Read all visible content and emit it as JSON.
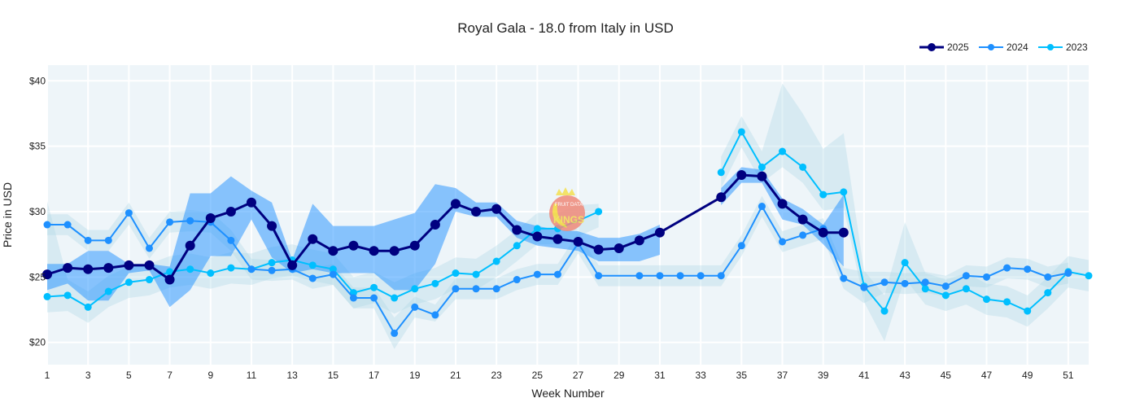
{
  "chart_data": {
    "type": "line",
    "title": "Royal Gala - 18.0 from Italy in USD",
    "xlabel": "Week Number",
    "ylabel": "Price in USD",
    "ylim": [
      18.3,
      41.2
    ],
    "xlim": [
      1,
      52
    ],
    "yticks": [
      20,
      25,
      30,
      35,
      40
    ],
    "ytick_labels": [
      "$20",
      "$25",
      "$30",
      "$35",
      "$40"
    ],
    "xticks": [
      1,
      3,
      5,
      7,
      9,
      11,
      13,
      15,
      17,
      19,
      21,
      23,
      25,
      27,
      29,
      31,
      33,
      35,
      37,
      39,
      41,
      43,
      45,
      47,
      49,
      51
    ],
    "grid": true,
    "legend_position": "top-right",
    "background": "#EEF5F9",
    "weeks": [
      1,
      2,
      3,
      4,
      5,
      6,
      7,
      8,
      9,
      10,
      11,
      12,
      13,
      14,
      15,
      16,
      17,
      18,
      19,
      20,
      21,
      22,
      23,
      24,
      25,
      26,
      27,
      28,
      29,
      30,
      31,
      32,
      33,
      34,
      35,
      36,
      37,
      38,
      39,
      40,
      41,
      42,
      43,
      44,
      45,
      46,
      47,
      48,
      49,
      50,
      51,
      52
    ],
    "series": [
      {
        "name": "2023",
        "color": "#00BFFF",
        "band_color": "rgba(173,216,230,0.35)",
        "values": [
          23.5,
          23.6,
          22.7,
          23.9,
          24.6,
          24.8,
          25.4,
          25.6,
          25.3,
          25.7,
          25.6,
          26.1,
          26.3,
          25.9,
          25.6,
          23.8,
          24.2,
          23.4,
          24.1,
          24.5,
          25.3,
          25.2,
          26.2,
          27.4,
          28.7,
          28.7,
          29.3,
          30.0,
          null,
          null,
          null,
          null,
          null,
          33.0,
          36.1,
          33.4,
          34.6,
          33.4,
          31.3,
          31.5,
          24.3,
          22.4,
          26.1,
          24.1,
          23.6,
          24.1,
          23.3,
          23.1,
          22.4,
          23.8,
          25.4,
          25.1
        ],
        "band_low": [
          22.3,
          22.4,
          21.5,
          22.7,
          23.4,
          23.6,
          24.2,
          24.4,
          24.1,
          24.5,
          24.4,
          24.9,
          25.1,
          24.7,
          24.4,
          22.6,
          23.0,
          22.2,
          22.9,
          23.3,
          24.1,
          24.0,
          25.0,
          26.2,
          27.5,
          27.5,
          28.1,
          28.8,
          null,
          null,
          null,
          null,
          null,
          31.8,
          34.9,
          32.2,
          33.4,
          32.2,
          30.1,
          30.3,
          23.1,
          20.1,
          24.9,
          22.9,
          22.4,
          22.9,
          22.1,
          21.9,
          21.2,
          22.6,
          24.2,
          23.9
        ],
        "band_high": [
          30.8,
          24.8,
          23.9,
          25.1,
          25.8,
          26.0,
          26.6,
          26.8,
          26.5,
          26.9,
          26.8,
          27.3,
          27.5,
          27.1,
          26.8,
          25.0,
          25.4,
          24.6,
          25.3,
          25.7,
          26.5,
          26.4,
          27.4,
          28.6,
          29.9,
          29.9,
          30.5,
          30.6,
          null,
          null,
          null,
          null,
          null,
          34.2,
          37.3,
          34.6,
          39.8,
          37.5,
          34.8,
          36.0,
          25.5,
          23.6,
          29.2,
          25.3,
          24.8,
          25.3,
          24.5,
          24.3,
          23.6,
          25.0,
          26.6,
          26.3
        ]
      },
      {
        "name": "2024",
        "color": "#1E90FF",
        "band_color": "rgba(173,216,230,0.35)",
        "values": [
          29.0,
          29.0,
          27.8,
          27.8,
          29.9,
          27.2,
          29.2,
          29.3,
          29.2,
          27.8,
          25.6,
          25.5,
          25.6,
          24.9,
          25.2,
          23.4,
          23.4,
          20.7,
          22.7,
          22.1,
          24.1,
          24.1,
          24.1,
          24.8,
          25.2,
          25.2,
          27.6,
          25.1,
          null,
          25.1,
          25.1,
          25.1,
          25.1,
          25.1,
          27.4,
          30.4,
          27.7,
          28.2,
          28.7,
          24.9,
          24.2,
          24.6,
          24.5,
          24.6,
          24.3,
          25.1,
          25.0,
          25.7,
          25.6,
          25.0,
          25.3,
          null
        ],
        "band_low": [
          28.2,
          28.2,
          27.0,
          27.0,
          29.0,
          26.4,
          28.4,
          28.5,
          28.4,
          27.0,
          24.8,
          24.7,
          24.8,
          24.1,
          24.4,
          22.6,
          22.6,
          19.5,
          21.9,
          21.6,
          23.3,
          23.3,
          23.3,
          24.0,
          24.4,
          24.4,
          26.8,
          24.3,
          24.3,
          24.3,
          24.3,
          24.3,
          24.3,
          24.3,
          26.6,
          29.6,
          26.9,
          27.4,
          27.9,
          24.1,
          23.0,
          23.8,
          23.7,
          23.8,
          23.5,
          24.3,
          24.2,
          24.9,
          24.8,
          24.2,
          24.5,
          null
        ],
        "band_high": [
          29.8,
          29.8,
          28.6,
          28.6,
          30.7,
          28.0,
          30.0,
          30.1,
          30.0,
          28.6,
          26.4,
          26.3,
          26.4,
          25.7,
          26.0,
          24.2,
          24.2,
          21.9,
          23.5,
          22.9,
          24.9,
          24.9,
          24.9,
          25.6,
          26.0,
          26.0,
          28.4,
          25.9,
          25.9,
          25.9,
          25.9,
          25.9,
          25.9,
          25.9,
          28.2,
          31.2,
          28.5,
          29.0,
          29.5,
          25.7,
          25.4,
          25.4,
          25.3,
          25.4,
          25.1,
          25.9,
          25.8,
          26.5,
          26.4,
          25.8,
          26.1,
          null
        ]
      },
      {
        "name": "2025",
        "color": "#000080",
        "band_color": "rgba(30,144,255,0.5)",
        "values": [
          25.2,
          25.7,
          25.6,
          25.7,
          25.9,
          25.9,
          24.8,
          27.4,
          29.5,
          30.0,
          30.7,
          28.9,
          25.9,
          27.9,
          27.0,
          27.4,
          27.0,
          27.0,
          27.4,
          29.0,
          30.6,
          30.0,
          30.2,
          28.6,
          28.1,
          27.9,
          27.7,
          27.1,
          27.2,
          27.8,
          28.4,
          null,
          null,
          31.1,
          32.8,
          32.7,
          30.6,
          29.4,
          28.4,
          28.4,
          null,
          null,
          null,
          null,
          null,
          null,
          null,
          null,
          null,
          null,
          null,
          null
        ],
        "band_low": [
          24.0,
          24.5,
          23.2,
          23.2,
          25.3,
          25.5,
          22.7,
          24.0,
          26.6,
          26.6,
          29.4,
          26.5,
          25.3,
          25.6,
          25.3,
          25.3,
          25.3,
          24.0,
          24.0,
          26.0,
          30.0,
          29.6,
          29.6,
          28.0,
          27.4,
          27.2,
          27.0,
          26.2,
          26.2,
          26.2,
          26.7,
          null,
          null,
          30.5,
          32.2,
          32.2,
          29.4,
          29.0,
          27.5,
          25.8,
          null,
          null,
          null,
          null,
          null,
          null,
          null,
          null,
          null,
          null,
          null,
          null
        ],
        "band_high": [
          26.0,
          26.0,
          27.0,
          27.0,
          26.0,
          26.0,
          25.8,
          31.4,
          31.4,
          32.7,
          31.6,
          30.7,
          26.3,
          30.6,
          28.9,
          28.9,
          28.9,
          29.4,
          29.9,
          32.1,
          31.8,
          30.7,
          30.7,
          29.3,
          28.9,
          28.6,
          28.5,
          28.0,
          28.0,
          28.3,
          29.0,
          null,
          null,
          31.8,
          33.4,
          33.2,
          31.0,
          30.2,
          29.0,
          31.3,
          null,
          null,
          null,
          null,
          null,
          null,
          null,
          null,
          null,
          null,
          null,
          null
        ]
      }
    ],
    "legend_order": [
      "2025",
      "2024",
      "2023"
    ]
  },
  "watermark": {
    "text": "FRUIT DATA KINGS .com"
  }
}
